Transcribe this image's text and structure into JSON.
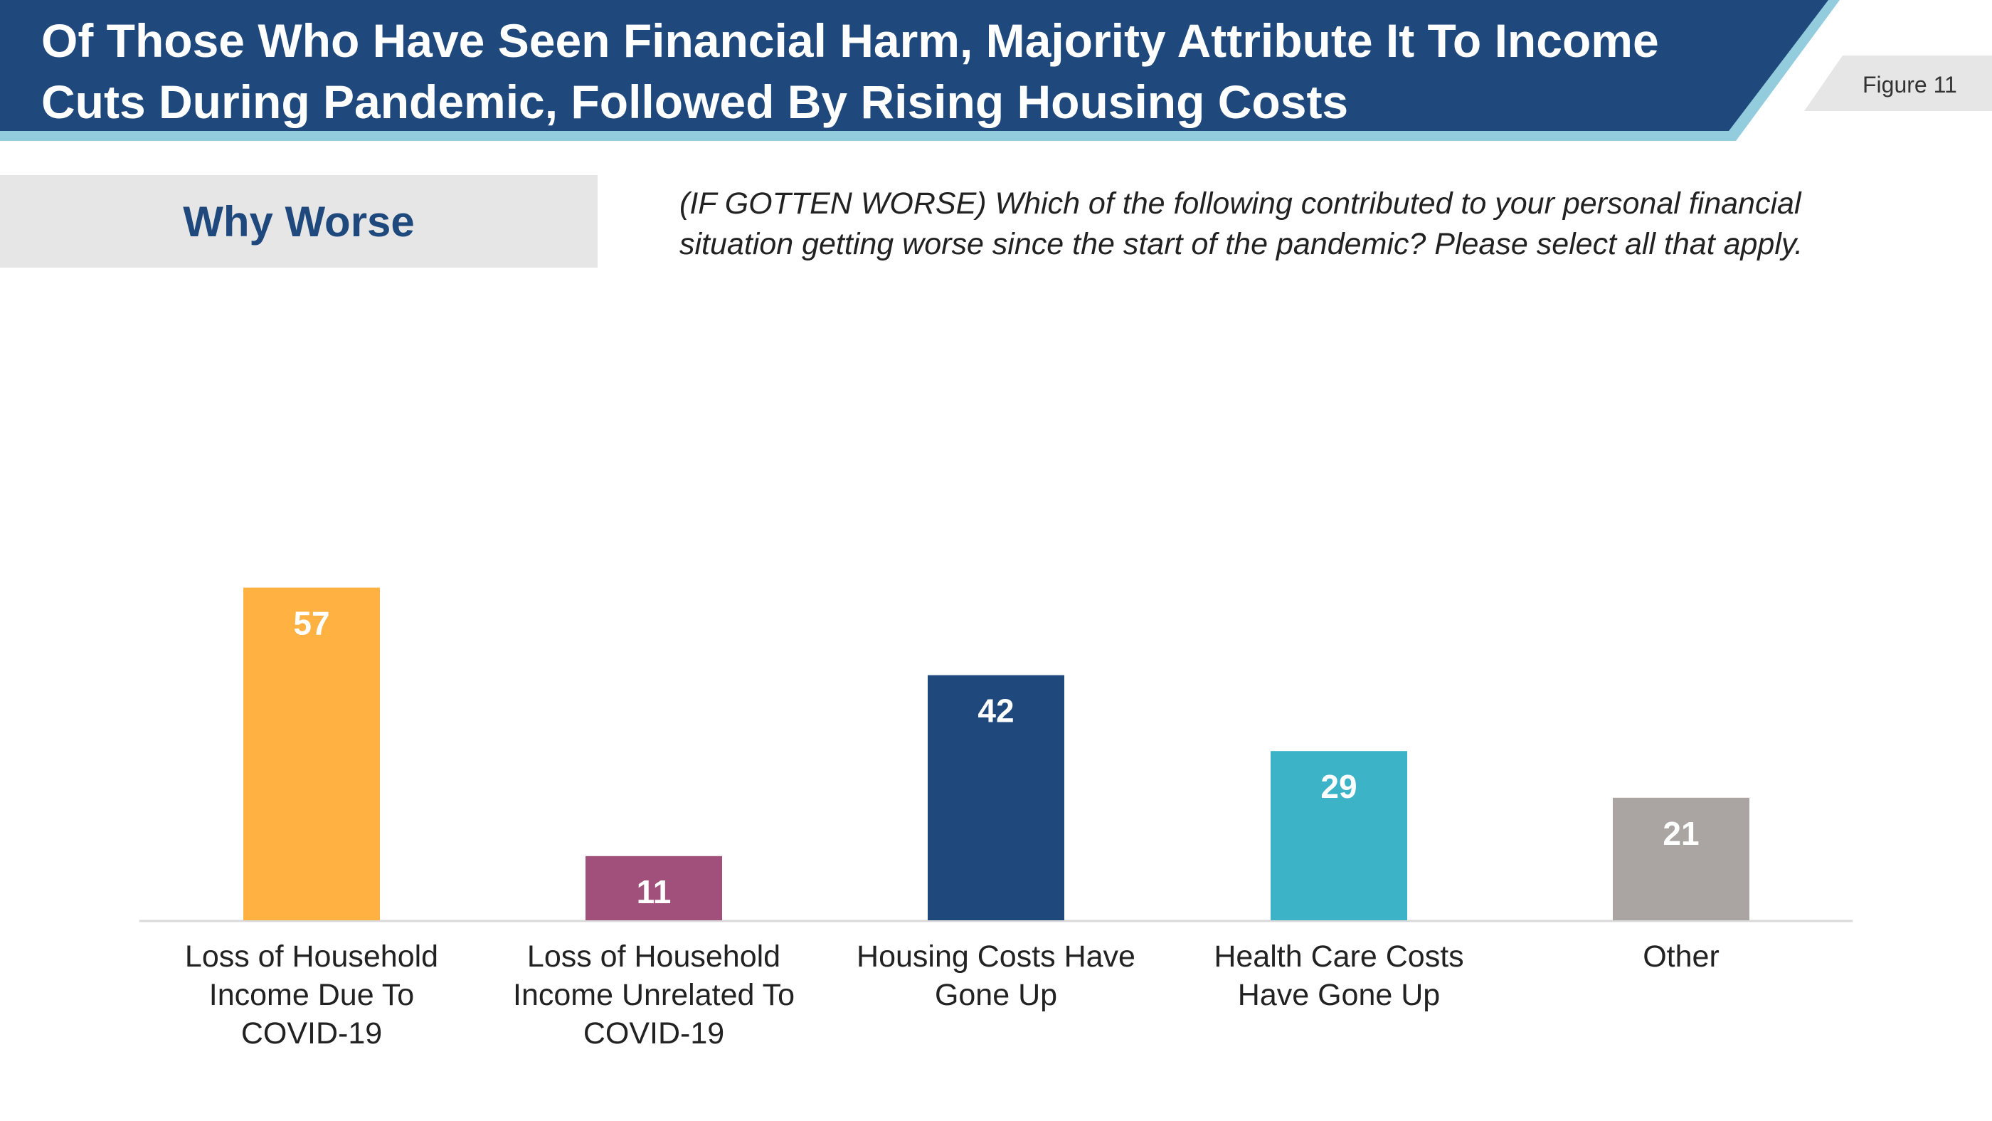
{
  "header": {
    "title_line1": "Of Those Who Have Seen Financial Harm, Majority Attribute It To Income",
    "title_line2": "Cuts During Pandemic, Followed By Rising Housing Costs",
    "figure_label": "Figure 11"
  },
  "section": {
    "label": "Why Worse",
    "question_line1": "(IF GOTTEN WORSE) Which of the following contributed to your personal financial",
    "question_line2": "situation getting worse  since the start of the pandemic? Please select all that apply."
  },
  "colors": {
    "header_bg": "#1f497d",
    "header_accent": "#93cddd",
    "section_text": "#1f497d"
  },
  "chart_data": {
    "type": "bar",
    "title": "",
    "xlabel": "",
    "ylabel": "",
    "ylim": [
      0,
      60
    ],
    "categories": [
      [
        "Loss of Household",
        "Income Due To",
        "COVID-19"
      ],
      [
        "Loss of Household",
        "Income Unrelated To",
        "COVID-19"
      ],
      [
        "Housing Costs Have",
        "Gone Up"
      ],
      [
        "Health Care Costs",
        "Have Gone Up"
      ],
      [
        "Other"
      ]
    ],
    "values": [
      57,
      11,
      42,
      29,
      21
    ],
    "bar_colors": [
      "#ffb142",
      "#a0507b",
      "#1f497d",
      "#3db3c8",
      "#aaa5a2"
    ],
    "data_label_color": "#ffffff"
  }
}
